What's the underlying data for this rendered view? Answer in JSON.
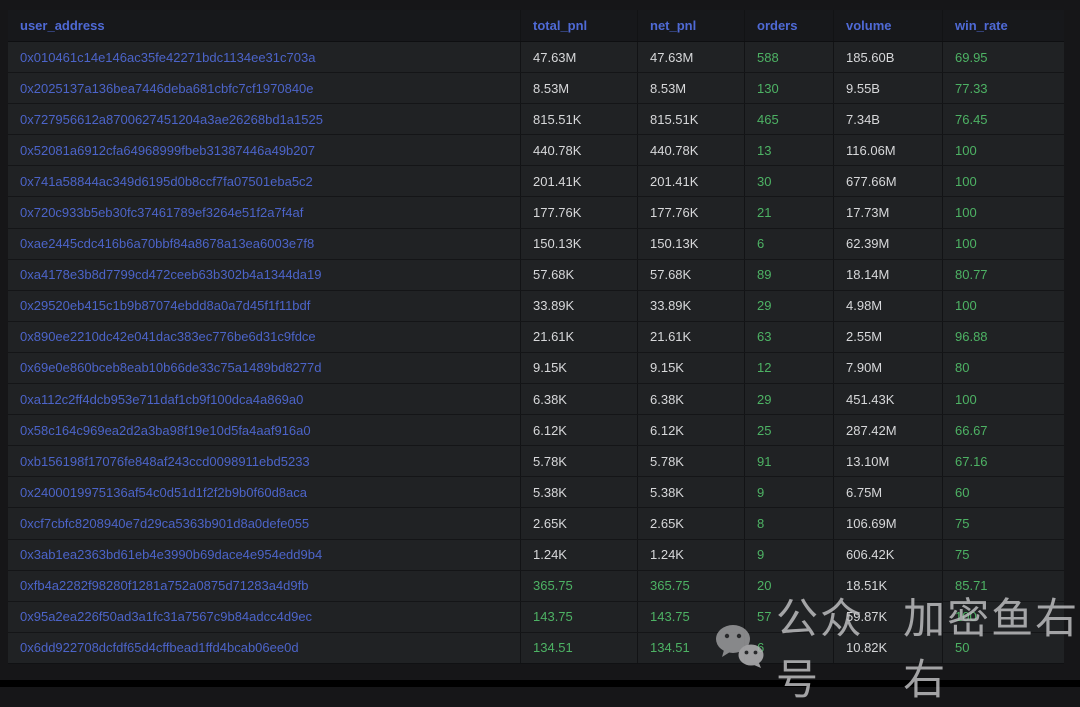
{
  "colors": {
    "header_blue": "#4f6ad6",
    "link_blue": "#4c64c9",
    "value_white": "#d7d8da",
    "value_green": "#4db264",
    "row_background": "#202224",
    "header_background": "#17181b",
    "page_background": "#161618",
    "watermark_gray": "#bcbcbe"
  },
  "table": {
    "columns": [
      {
        "key": "address",
        "label": "user_address"
      },
      {
        "key": "total_pnl",
        "label": "total_pnl"
      },
      {
        "key": "net_pnl",
        "label": "net_pnl"
      },
      {
        "key": "orders",
        "label": "orders"
      },
      {
        "key": "volume",
        "label": "volume"
      },
      {
        "key": "win_rate",
        "label": "win_rate"
      }
    ],
    "rows": [
      {
        "address": "0x010461c14e146ac35fe42271bdc1134ee31c703a",
        "total_pnl": "47.63M",
        "net_pnl": "47.63M",
        "orders": "588",
        "volume": "185.60B",
        "win_rate": "69.95",
        "pnl_green": false
      },
      {
        "address": "0x2025137a136bea7446deba681cbfc7cf1970840e",
        "total_pnl": "8.53M",
        "net_pnl": "8.53M",
        "orders": "130",
        "volume": "9.55B",
        "win_rate": "77.33",
        "pnl_green": false
      },
      {
        "address": "0x727956612a8700627451204a3ae26268bd1a1525",
        "total_pnl": "815.51K",
        "net_pnl": "815.51K",
        "orders": "465",
        "volume": "7.34B",
        "win_rate": "76.45",
        "pnl_green": false
      },
      {
        "address": "0x52081a6912cfa64968999fbeb31387446a49b207",
        "total_pnl": "440.78K",
        "net_pnl": "440.78K",
        "orders": "13",
        "volume": "116.06M",
        "win_rate": "100",
        "pnl_green": false
      },
      {
        "address": "0x741a58844ac349d6195d0b8ccf7fa07501eba5c2",
        "total_pnl": "201.41K",
        "net_pnl": "201.41K",
        "orders": "30",
        "volume": "677.66M",
        "win_rate": "100",
        "pnl_green": false
      },
      {
        "address": "0x720c933b5eb30fc37461789ef3264e51f2a7f4af",
        "total_pnl": "177.76K",
        "net_pnl": "177.76K",
        "orders": "21",
        "volume": "17.73M",
        "win_rate": "100",
        "pnl_green": false
      },
      {
        "address": "0xae2445cdc416b6a70bbf84a8678a13ea6003e7f8",
        "total_pnl": "150.13K",
        "net_pnl": "150.13K",
        "orders": "6",
        "volume": "62.39M",
        "win_rate": "100",
        "pnl_green": false
      },
      {
        "address": "0xa4178e3b8d7799cd472ceeb63b302b4a1344da19",
        "total_pnl": "57.68K",
        "net_pnl": "57.68K",
        "orders": "89",
        "volume": "18.14M",
        "win_rate": "80.77",
        "pnl_green": false
      },
      {
        "address": "0x29520eb415c1b9b87074ebdd8a0a7d45f1f11bdf",
        "total_pnl": "33.89K",
        "net_pnl": "33.89K",
        "orders": "29",
        "volume": "4.98M",
        "win_rate": "100",
        "pnl_green": false
      },
      {
        "address": "0x890ee2210dc42e041dac383ec776be6d31c9fdce",
        "total_pnl": "21.61K",
        "net_pnl": "21.61K",
        "orders": "63",
        "volume": "2.55M",
        "win_rate": "96.88",
        "pnl_green": false
      },
      {
        "address": "0x69e0e860bceb8eab10b66de33c75a1489bd8277d",
        "total_pnl": "9.15K",
        "net_pnl": "9.15K",
        "orders": "12",
        "volume": "7.90M",
        "win_rate": "80",
        "pnl_green": false
      },
      {
        "address": "0xa112c2ff4dcb953e711daf1cb9f100dca4a869a0",
        "total_pnl": "6.38K",
        "net_pnl": "6.38K",
        "orders": "29",
        "volume": "451.43K",
        "win_rate": "100",
        "pnl_green": false
      },
      {
        "address": "0x58c164c969ea2d2a3ba98f19e10d5fa4aaf916a0",
        "total_pnl": "6.12K",
        "net_pnl": "6.12K",
        "orders": "25",
        "volume": "287.42M",
        "win_rate": "66.67",
        "pnl_green": false
      },
      {
        "address": "0xb156198f17076fe848af243ccd0098911ebd5233",
        "total_pnl": "5.78K",
        "net_pnl": "5.78K",
        "orders": "91",
        "volume": "13.10M",
        "win_rate": "67.16",
        "pnl_green": false
      },
      {
        "address": "0x2400019975136af54c0d51d1f2f2b9b0f60d8aca",
        "total_pnl": "5.38K",
        "net_pnl": "5.38K",
        "orders": "9",
        "volume": "6.75M",
        "win_rate": "60",
        "pnl_green": false
      },
      {
        "address": "0xcf7cbfc8208940e7d29ca5363b901d8a0defe055",
        "total_pnl": "2.65K",
        "net_pnl": "2.65K",
        "orders": "8",
        "volume": "106.69M",
        "win_rate": "75",
        "pnl_green": false
      },
      {
        "address": "0x3ab1ea2363bd61eb4e3990b69dace4e954edd9b4",
        "total_pnl": "1.24K",
        "net_pnl": "1.24K",
        "orders": "9",
        "volume": "606.42K",
        "win_rate": "75",
        "pnl_green": false
      },
      {
        "address": "0xfb4a2282f98280f1281a752a0875d71283a4d9fb",
        "total_pnl": "365.75",
        "net_pnl": "365.75",
        "orders": "20",
        "volume": "18.51K",
        "win_rate": "85.71",
        "pnl_green": true
      },
      {
        "address": "0x95a2ea226f50ad3a1fc31a7567c9b84adcc4d9ec",
        "total_pnl": "143.75",
        "net_pnl": "143.75",
        "orders": "57",
        "volume": "59.87K",
        "win_rate": "100",
        "pnl_green": true
      },
      {
        "address": "0x6dd922708dcfdf65d4cffbead1ffd4bcab06ee0d",
        "total_pnl": "134.51",
        "net_pnl": "134.51",
        "orders": "6",
        "volume": "10.82K",
        "win_rate": "50",
        "pnl_green": true
      }
    ]
  },
  "watermark": {
    "icon": "wechat-icon",
    "text_1": "公众号",
    "text_2": "加密鱼右右"
  }
}
